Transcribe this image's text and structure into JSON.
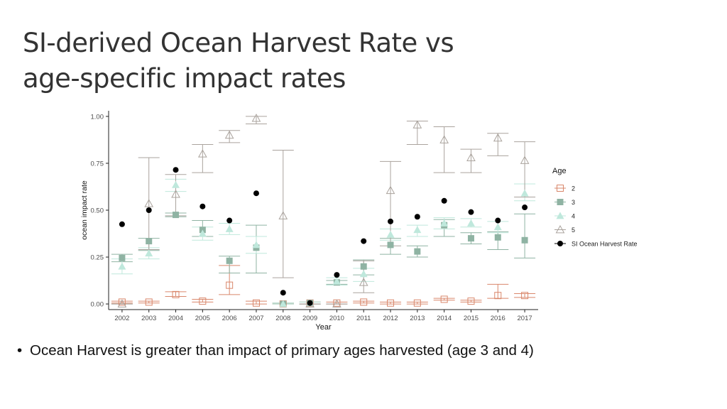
{
  "slide": {
    "title_line1": "SI-derived  Ocean Harvest Rate vs",
    "title_line2": "age-specific impact rates",
    "bullet_text": "Ocean Harvest is greater than impact of primary ages harvested (age 3 and 4)"
  },
  "chart_data": {
    "type": "scatter",
    "xlabel": "Year",
    "ylabel": "ocean impact rate",
    "ylim": [
      -0.03,
      1.03
    ],
    "yticks": [
      0,
      0.25,
      0.5,
      0.75,
      1.0
    ],
    "ytick_labels": [
      "0.00",
      "0.25",
      "0.50",
      "0.75",
      "1.00"
    ],
    "categories": [
      "2002",
      "2003",
      "2004",
      "2005",
      "2006",
      "2007",
      "2008",
      "2009",
      "2010",
      "2011",
      "2012",
      "2013",
      "2014",
      "2015",
      "2016",
      "2017"
    ],
    "grid": false,
    "legend_title": "Age",
    "legend_position": "right",
    "series": [
      {
        "name": "2",
        "marker": "open-square",
        "color": "#d9876b",
        "values": [
          0.01,
          0.01,
          0.05,
          0.015,
          0.1,
          0.005,
          0.0,
          0.005,
          0.005,
          0.01,
          0.005,
          0.005,
          0.025,
          0.015,
          0.045,
          0.045
        ],
        "lower": [
          0.005,
          0.005,
          0.04,
          0.01,
          0.05,
          0.0,
          0.0,
          0.0,
          0.0,
          0.005,
          0.0,
          0.0,
          0.02,
          0.01,
          0.03,
          0.035
        ],
        "upper": [
          0.015,
          0.015,
          0.065,
          0.025,
          0.205,
          0.015,
          0.005,
          0.01,
          0.01,
          0.015,
          0.01,
          0.01,
          0.03,
          0.02,
          0.105,
          0.055
        ]
      },
      {
        "name": "3",
        "marker": "filled-square",
        "color": "#8fb3a3",
        "values": [
          0.245,
          0.335,
          0.475,
          0.395,
          0.23,
          0.3,
          0.0,
          0.005,
          0.115,
          0.2,
          0.315,
          0.28,
          0.42,
          0.35,
          0.355,
          0.34
        ],
        "lower": [
          0.225,
          0.285,
          0.465,
          0.36,
          0.165,
          0.165,
          0.0,
          0.0,
          0.105,
          0.155,
          0.265,
          0.25,
          0.36,
          0.32,
          0.29,
          0.245
        ],
        "upper": [
          0.265,
          0.35,
          0.485,
          0.445,
          0.255,
          0.42,
          0.005,
          0.01,
          0.125,
          0.235,
          0.35,
          0.31,
          0.45,
          0.38,
          0.385,
          0.48
        ]
      },
      {
        "name": "4",
        "marker": "filled-triangle",
        "color": "#bfe8dc",
        "values": [
          0.2,
          0.27,
          0.635,
          0.375,
          0.4,
          0.315,
          0.0,
          0.005,
          0.12,
          0.16,
          0.37,
          0.395,
          0.43,
          0.43,
          0.41,
          0.59
        ],
        "lower": [
          0.16,
          0.24,
          0.6,
          0.34,
          0.37,
          0.27,
          0.0,
          0.0,
          0.1,
          0.12,
          0.34,
          0.36,
          0.4,
          0.41,
          0.38,
          0.55
        ],
        "upper": [
          0.24,
          0.3,
          0.665,
          0.41,
          0.43,
          0.36,
          0.005,
          0.01,
          0.14,
          0.19,
          0.4,
          0.42,
          0.46,
          0.455,
          0.44,
          0.64
        ]
      },
      {
        "name": "5",
        "marker": "open-triangle",
        "color": "#aaa39d",
        "values": [
          0.0,
          0.535,
          0.585,
          0.8,
          0.9,
          0.99,
          0.47,
          0.0,
          0.0,
          0.115,
          0.605,
          0.955,
          0.875,
          0.78,
          0.885,
          0.765
        ],
        "lower": [
          0.0,
          0.29,
          0.47,
          0.7,
          0.86,
          0.96,
          0.14,
          0.0,
          0.0,
          0.06,
          0.31,
          0.85,
          0.7,
          0.7,
          0.79,
          0.57
        ],
        "upper": [
          0.0,
          0.78,
          0.69,
          0.85,
          0.925,
          1.0,
          0.82,
          0.0,
          0.0,
          0.23,
          0.76,
          0.975,
          0.945,
          0.825,
          0.91,
          0.865
        ]
      },
      {
        "name": "SI Ocean Harvest Rate",
        "marker": "filled-circle",
        "color": "#000000",
        "values": [
          0.425,
          0.5,
          0.715,
          0.52,
          0.445,
          0.59,
          0.06,
          0.005,
          0.155,
          0.335,
          0.44,
          0.465,
          0.55,
          0.49,
          0.445,
          0.515
        ]
      }
    ]
  }
}
